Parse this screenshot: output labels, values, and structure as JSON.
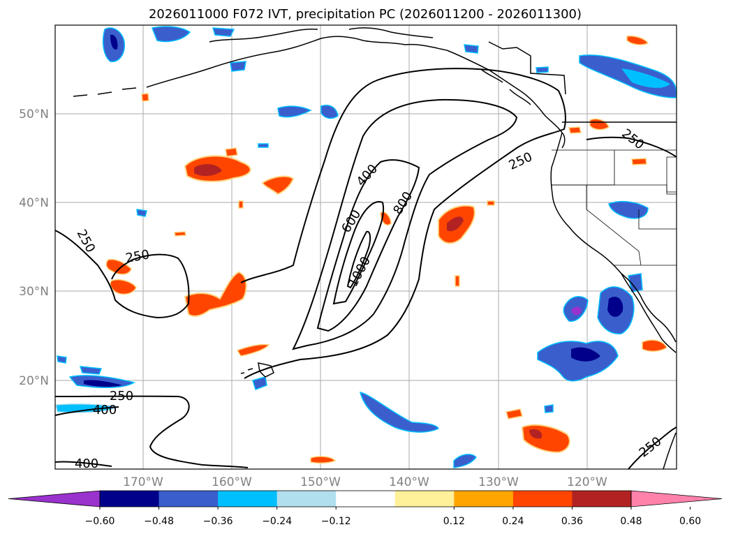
{
  "title": "2026011000 F072 IVT, precipitation PC (2026011200 - 2026011300)",
  "map": {
    "lat_labels": [
      "50°N",
      "40°N",
      "30°N",
      "20°N"
    ],
    "lon_labels": [
      "170°W",
      "160°W",
      "150°W",
      "140°W",
      "130°W",
      "120°W"
    ],
    "extent": {
      "lon": [
        -180,
        -110
      ],
      "lat": [
        10,
        60
      ]
    },
    "grid_lats": [
      20,
      30,
      40,
      50
    ],
    "grid_lons": [
      -170,
      -160,
      -150,
      -140,
      -130,
      -120
    ]
  },
  "contour_labels": [
    "400",
    "600",
    "800",
    "1000",
    "250",
    "250",
    "250",
    "250",
    "250",
    "400",
    "400",
    "250"
  ],
  "colorbar": {
    "ticks": [
      "−0.60",
      "−0.48",
      "−0.36",
      "−0.24",
      "−0.12",
      "0.12",
      "0.24",
      "0.36",
      "0.48",
      "0.60"
    ],
    "colors": [
      "#9a32cd",
      "#00008b",
      "#3a5fcd",
      "#00bfff",
      "#b2dfee",
      "#ffffff",
      "#fff09a",
      "#ffa500",
      "#ff4500",
      "#b22222",
      "#ff82ab"
    ]
  }
}
